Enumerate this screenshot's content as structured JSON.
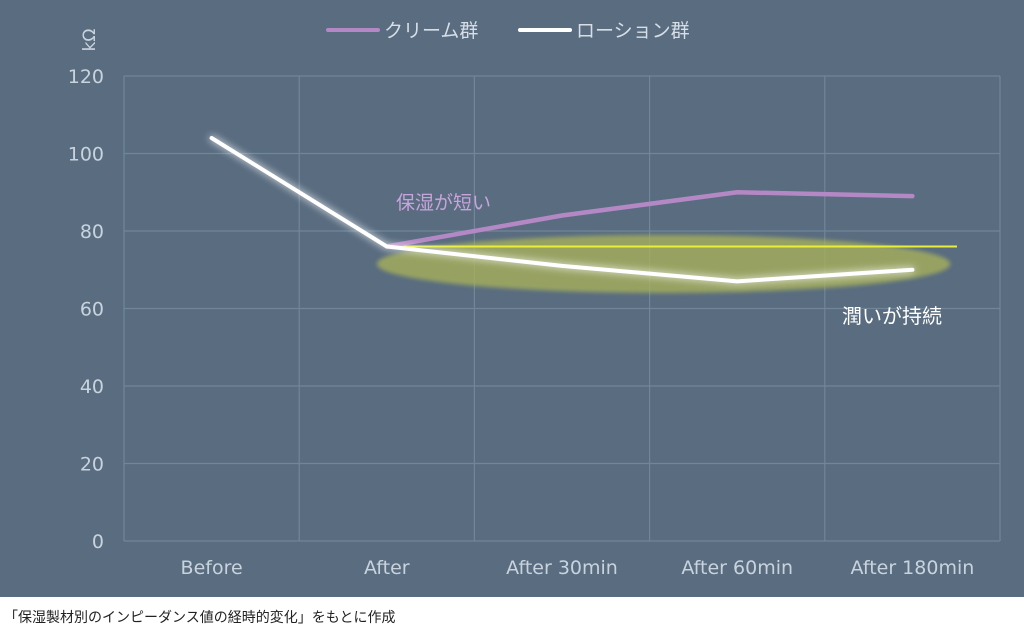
{
  "chart_data": {
    "type": "line",
    "categories": [
      "Before",
      "After",
      "After 30min",
      "After 60min",
      "After 180min"
    ],
    "series": [
      {
        "name": "クリーム群",
        "values": [
          null,
          76,
          84,
          90,
          89
        ],
        "color": "#b488c4"
      },
      {
        "name": "ローション群",
        "values": [
          104,
          76,
          71,
          67,
          70
        ],
        "color": "#ffffff"
      }
    ],
    "ylabel": "kΩ",
    "ylim": [
      0,
      120
    ],
    "yticks": [
      0,
      20,
      40,
      60,
      80,
      100,
      120
    ],
    "grid": true,
    "legend_position": "top",
    "annotations": [
      {
        "text": "保湿が短い",
        "color": "#c9a3dc"
      },
      {
        "text": "潤いが持続",
        "color": "#ffffff"
      }
    ],
    "reference_line": {
      "value": 76,
      "color": "#e8ee3a"
    },
    "highlight_color": "#a9b25a"
  },
  "caption": "「保湿製材別のインピーダンス値の経時的変化」をもとに作成"
}
